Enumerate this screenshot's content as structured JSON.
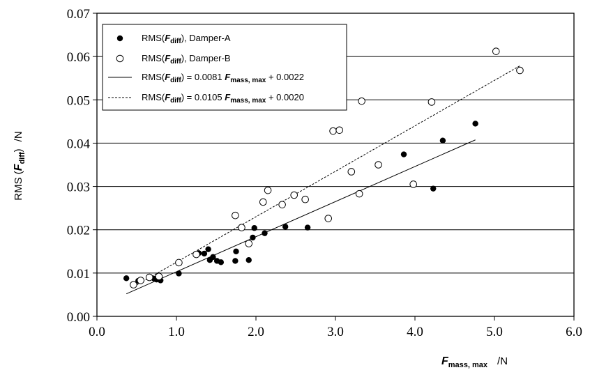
{
  "chart_data": {
    "type": "scatter",
    "xlim": [
      0,
      6
    ],
    "ylim": [
      0,
      0.07
    ],
    "x_ticks": [
      "0.0",
      "1.0",
      "2.0",
      "3.0",
      "4.0",
      "5.0",
      "6.0"
    ],
    "y_ticks": [
      "0.00",
      "0.01",
      "0.02",
      "0.03",
      "0.04",
      "0.05",
      "0.06",
      "0.07"
    ],
    "xlabel": {
      "main": "F",
      "sub": "mass, max",
      "unit": "/N"
    },
    "ylabel": {
      "pre": "RMS (",
      "main": "F",
      "sub": "diff",
      "post": ")",
      "unit": "/N"
    },
    "grid": "horizontal",
    "legend_position": "top-left",
    "series": [
      {
        "name": {
          "pre": "RMS(",
          "main": "F",
          "sub": "diff",
          "post": "), Damper-A"
        },
        "marker": "filled-circle",
        "points": [
          [
            0.37,
            0.0088
          ],
          [
            0.52,
            0.0082
          ],
          [
            0.72,
            0.0087
          ],
          [
            0.75,
            0.0085
          ],
          [
            0.8,
            0.0083
          ],
          [
            1.03,
            0.0099
          ],
          [
            1.28,
            0.0146
          ],
          [
            1.35,
            0.0145
          ],
          [
            1.4,
            0.0155
          ],
          [
            1.42,
            0.013
          ],
          [
            1.46,
            0.0137
          ],
          [
            1.51,
            0.0128
          ],
          [
            1.56,
            0.0125
          ],
          [
            1.74,
            0.0128
          ],
          [
            1.75,
            0.015
          ],
          [
            1.91,
            0.013
          ],
          [
            1.96,
            0.0182
          ],
          [
            1.98,
            0.0204
          ],
          [
            2.11,
            0.0192
          ],
          [
            2.37,
            0.0207
          ],
          [
            2.65,
            0.0205
          ],
          [
            3.86,
            0.0374
          ],
          [
            4.23,
            0.0295
          ],
          [
            4.35,
            0.0406
          ],
          [
            4.76,
            0.0445
          ]
        ]
      },
      {
        "name": {
          "pre": "RMS(",
          "main": "F",
          "sub": "diff",
          "post": "), Damper-B"
        },
        "marker": "open-circle",
        "points": [
          [
            0.46,
            0.0073
          ],
          [
            0.55,
            0.0083
          ],
          [
            0.66,
            0.009
          ],
          [
            0.78,
            0.0092
          ],
          [
            1.03,
            0.0124
          ],
          [
            1.25,
            0.0143
          ],
          [
            1.74,
            0.0233
          ],
          [
            1.82,
            0.0205
          ],
          [
            1.91,
            0.0168
          ],
          [
            2.09,
            0.0264
          ],
          [
            2.15,
            0.0291
          ],
          [
            2.33,
            0.0258
          ],
          [
            2.48,
            0.028
          ],
          [
            2.62,
            0.027
          ],
          [
            2.91,
            0.0226
          ],
          [
            2.97,
            0.0428
          ],
          [
            3.05,
            0.043
          ],
          [
            3.2,
            0.0334
          ],
          [
            3.3,
            0.0283
          ],
          [
            3.33,
            0.0497
          ],
          [
            3.54,
            0.035
          ],
          [
            3.98,
            0.0305
          ],
          [
            4.21,
            0.0495
          ],
          [
            5.02,
            0.0612
          ],
          [
            5.32,
            0.0568
          ]
        ]
      },
      {
        "name": {
          "pre": "RMS(",
          "main": "F",
          "sub": "diff",
          "post": ") = 0.0081 ",
          "main2": "F",
          "sub2": "mass, max",
          "post2": " + 0.0022"
        },
        "type": "line",
        "style": "solid",
        "slope": 0.0081,
        "intercept": 0.0022,
        "x_range": [
          0.37,
          4.76
        ]
      },
      {
        "name": {
          "pre": "RMS(",
          "main": "F",
          "sub": "diff",
          "post": ") = 0.0105 ",
          "main2": "F",
          "sub2": "mass, max",
          "post2": " + 0.0020"
        },
        "type": "line",
        "style": "dashed",
        "slope": 0.0105,
        "intercept": 0.002,
        "x_range": [
          0.46,
          5.32
        ]
      }
    ]
  }
}
